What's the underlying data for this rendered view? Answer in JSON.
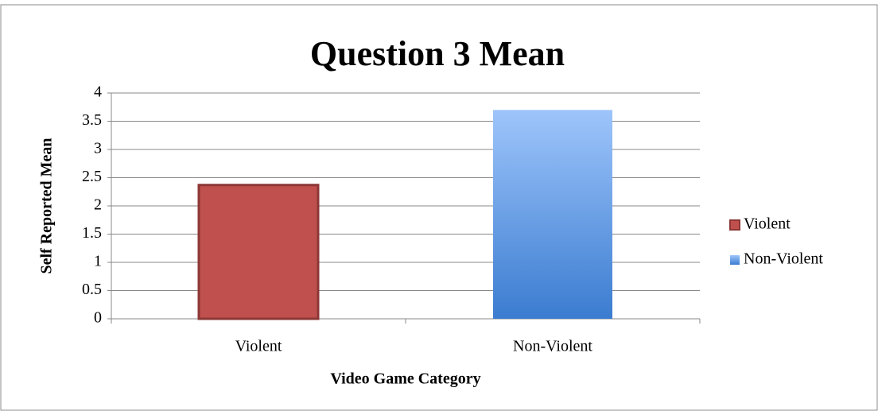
{
  "chart_data": {
    "type": "bar",
    "title": "Question 3 Mean",
    "x_label": "Video Game Category",
    "y_label": "Self Reported Mean",
    "categories": [
      "Violent",
      "Non-Violent"
    ],
    "series": [
      {
        "name": "Violent",
        "color": "#c0504d",
        "values": [
          2.37,
          null
        ]
      },
      {
        "name": "Non-Violent",
        "color": "#3b7cd0",
        "values": [
          null,
          3.7
        ]
      }
    ],
    "ylim": [
      0,
      4
    ],
    "yticks": [
      0,
      0.5,
      1,
      1.5,
      2,
      2.5,
      3,
      3.5,
      4
    ],
    "grid": true,
    "legend": "right"
  }
}
